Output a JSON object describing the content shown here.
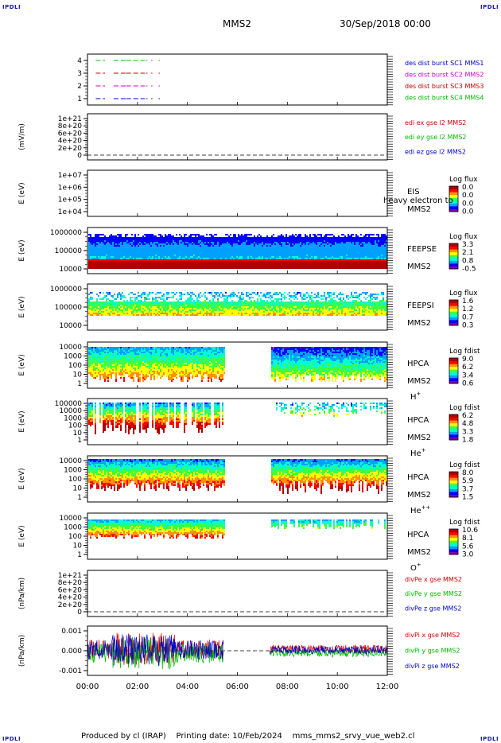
{
  "page": {
    "corner_label": "IPDLI",
    "spacecraft": "MMS2",
    "date": "30/Sep/2018 00:00",
    "footer": {
      "producer": "Produced by cl (IRAP)",
      "printing_date": "Printing date: 10/Feb/2024",
      "script": "mms_mms2_srvy_vue_web2.cl"
    }
  },
  "colors": {
    "series": [
      "#0000cc",
      "#cc0000",
      "#00bb00",
      "#cc00cc"
    ],
    "colorbar": [
      "#7a00b0",
      "#0000ff",
      "#00a0ff",
      "#00ffd0",
      "#40ff40",
      "#ffff00",
      "#ff9000",
      "#ff0000",
      "#b00000"
    ]
  },
  "chart_data": [
    {
      "type": "line",
      "id": "burst",
      "ylabel": "",
      "ylim": [
        0.5,
        4.5
      ],
      "ticks": [
        "1",
        "2",
        "3",
        "4"
      ],
      "legend": [
        {
          "text": "des dist burst SC1 MMS1",
          "color": "#0000cc"
        },
        {
          "text": "des dist burst SC2 MMS2",
          "color": "#cc00cc"
        },
        {
          "text": "des dist burst SC3 MMS3",
          "color": "#cc0000"
        },
        {
          "text": "des dist burst SC4 MMS4",
          "color": "#00bb00"
        }
      ],
      "series": [
        {
          "level": 4,
          "color": "#00bb00",
          "intervals": [
            [
              0.33,
              0.7
            ],
            [
              1.05,
              1.7
            ],
            [
              1.55,
              2.3
            ],
            [
              2.35,
              2.4
            ],
            [
              2.55,
              2.6
            ],
            [
              2.85,
              2.9
            ]
          ]
        },
        {
          "level": 3,
          "color": "#cc0000",
          "intervals": [
            [
              0.33,
              0.7
            ],
            [
              1.05,
              1.7
            ],
            [
              1.55,
              2.3
            ],
            [
              2.35,
              2.4
            ],
            [
              2.55,
              2.6
            ],
            [
              2.85,
              2.9
            ]
          ]
        },
        {
          "level": 2,
          "color": "#cc00cc",
          "intervals": [
            [
              0.33,
              0.7
            ],
            [
              1.05,
              1.7
            ],
            [
              1.55,
              2.3
            ],
            [
              2.35,
              2.4
            ],
            [
              2.55,
              2.6
            ],
            [
              2.85,
              2.9
            ]
          ]
        },
        {
          "level": 1,
          "color": "#0000cc",
          "intervals": [
            [
              0.33,
              0.7
            ],
            [
              1.05,
              1.7
            ],
            [
              1.55,
              2.3
            ],
            [
              2.35,
              2.4
            ],
            [
              2.55,
              2.6
            ],
            [
              2.85,
              2.9
            ]
          ]
        }
      ]
    },
    {
      "type": "line",
      "id": "edi",
      "ylabel": "(mV/m)",
      "ylim": [
        0,
        1.1e+21
      ],
      "ticks": [
        "0",
        "2e+20",
        "4e+20",
        "6e+20",
        "8e+20",
        "1e+21"
      ],
      "legend": [
        {
          "text": "edi ex gse l2 MMS2",
          "color": "#cc0000"
        },
        {
          "text": "edi ey gse l2 MMS2",
          "color": "#00bb00"
        },
        {
          "text": "edi ez gse l2 MMS2",
          "color": "#0000cc"
        }
      ]
    },
    {
      "type": "heatmap",
      "id": "eis",
      "ylabel": "E (eV)",
      "ticks": [
        "1e+04",
        "1e+05",
        "1e+06",
        "1e+07"
      ],
      "instrument": "EIS",
      "sc": "MMS2",
      "overlay_text": "heavy electron to",
      "colorbar_title": "Log flux",
      "colorbar_ticks": [
        "0.0",
        "0.0",
        "0.0",
        "0.0"
      ]
    },
    {
      "type": "heatmap",
      "id": "feepse",
      "ylabel": "E (eV)",
      "ticks": [
        "10000",
        "100000",
        "1000000"
      ],
      "instrument": "FEEPSE",
      "sc": "MMS2",
      "colorbar_title": "Log flux",
      "colorbar_ticks": [
        "3.3",
        "2.1",
        "0.8",
        "-0.5"
      ]
    },
    {
      "type": "heatmap",
      "id": "feepsi",
      "ylabel": "E (eV)",
      "ticks": [
        "10000",
        "100000",
        "1000000"
      ],
      "instrument": "FEEPSI",
      "sc": "MMS2",
      "colorbar_title": "Log flux",
      "colorbar_ticks": [
        "1.6",
        "1.2",
        "0.7",
        "0.3"
      ]
    },
    {
      "type": "heatmap",
      "id": "hpca_h",
      "ylabel": "E (eV)",
      "ticks": [
        "1",
        "10",
        "100",
        "1000",
        "10000"
      ],
      "instrument": "HPCA",
      "sc": "MMS2",
      "species": "H",
      "species_sup": "+",
      "colorbar_title": "Log fdist",
      "colorbar_ticks": [
        "9.0",
        "6.2",
        "3.4",
        "0.6"
      ]
    },
    {
      "type": "heatmap",
      "id": "hpca_he",
      "ylabel": "E (eV)",
      "ticks": [
        "1",
        "10",
        "100",
        "1000",
        "10000",
        "100000"
      ],
      "instrument": "HPCA",
      "sc": "MMS2",
      "species": "He",
      "species_sup": "+",
      "colorbar_title": "Log fdist",
      "colorbar_ticks": [
        "6.2",
        "4.8",
        "3.3",
        "1.8"
      ]
    },
    {
      "type": "heatmap",
      "id": "hpca_hepp",
      "ylabel": "E (eV)",
      "ticks": [
        "1",
        "10",
        "100",
        "1000",
        "10000"
      ],
      "instrument": "HPCA",
      "sc": "MMS2",
      "species": "He",
      "species_sup": "++",
      "colorbar_title": "Log fdist",
      "colorbar_ticks": [
        "8.0",
        "5.9",
        "3.7",
        "1.5"
      ]
    },
    {
      "type": "heatmap",
      "id": "hpca_o",
      "ylabel": "E (eV)",
      "ticks": [
        "1",
        "10",
        "100",
        "1000",
        "10000"
      ],
      "instrument": "HPCA",
      "sc": "MMS2",
      "species": "O",
      "species_sup": "+",
      "colorbar_title": "Log fdist",
      "colorbar_ticks": [
        "10.6",
        "8.1",
        "5.6",
        "3.0"
      ]
    },
    {
      "type": "line",
      "id": "divpe",
      "ylabel": "(nPa/km)",
      "ylim": [
        0,
        1.1e+21
      ],
      "ticks": [
        "0",
        "2e+20",
        "4e+20",
        "6e+20",
        "8e+20",
        "1e+21"
      ],
      "legend": [
        {
          "text": "divPe x gse MMS2",
          "color": "#cc0000"
        },
        {
          "text": "divPe y gse MMS2",
          "color": "#00bb00"
        },
        {
          "text": "divPe z gse MMS2",
          "color": "#0000cc"
        }
      ]
    },
    {
      "type": "line",
      "id": "divpi",
      "ylabel": "(nPa/km)",
      "ylim": [
        -0.0015,
        0.0015
      ],
      "ticks": [
        "-0.001",
        "0.000",
        "0.001"
      ],
      "legend": [
        {
          "text": "divPi x gse MMS2",
          "color": "#cc0000"
        },
        {
          "text": "divPi y gse MMS2",
          "color": "#00bb00"
        },
        {
          "text": "divPi z gse MMS2",
          "color": "#0000cc"
        }
      ]
    }
  ],
  "time_axis": {
    "xlim_hours": [
      0,
      12
    ],
    "ticks": [
      "00:00",
      "02:00",
      "04:00",
      "06:00",
      "08:00",
      "10:00",
      "12:00"
    ]
  }
}
